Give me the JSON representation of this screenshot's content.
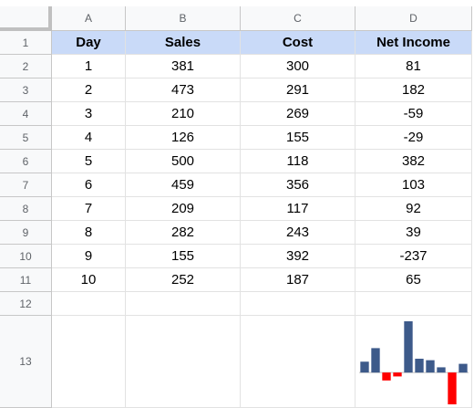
{
  "columns": [
    "A",
    "B",
    "C",
    "D"
  ],
  "rows": [
    "1",
    "2",
    "3",
    "4",
    "5",
    "6",
    "7",
    "8",
    "9",
    "10",
    "11",
    "12",
    "13"
  ],
  "headers": [
    "Day",
    "Sales",
    "Cost",
    "Net Income"
  ],
  "table": [
    [
      "1",
      "381",
      "300",
      "81"
    ],
    [
      "2",
      "473",
      "291",
      "182"
    ],
    [
      "3",
      "210",
      "269",
      "-59"
    ],
    [
      "4",
      "126",
      "155",
      "-29"
    ],
    [
      "5",
      "500",
      "118",
      "382"
    ],
    [
      "6",
      "459",
      "356",
      "103"
    ],
    [
      "7",
      "209",
      "117",
      "92"
    ],
    [
      "8",
      "282",
      "243",
      "39"
    ],
    [
      "9",
      "155",
      "392",
      "-237"
    ],
    [
      "10",
      "252",
      "187",
      "65"
    ]
  ],
  "colors": {
    "header_fill": "#c9daf8",
    "spark_positive": "#3d5a8a",
    "spark_negative": "#ff0000"
  },
  "chart_data": {
    "type": "bar",
    "categories": [
      1,
      2,
      3,
      4,
      5,
      6,
      7,
      8,
      9,
      10
    ],
    "values": [
      81,
      182,
      -59,
      -29,
      382,
      103,
      92,
      39,
      -237,
      65
    ],
    "xlabel": "",
    "ylabel": "",
    "grid": false,
    "legend": "none"
  }
}
